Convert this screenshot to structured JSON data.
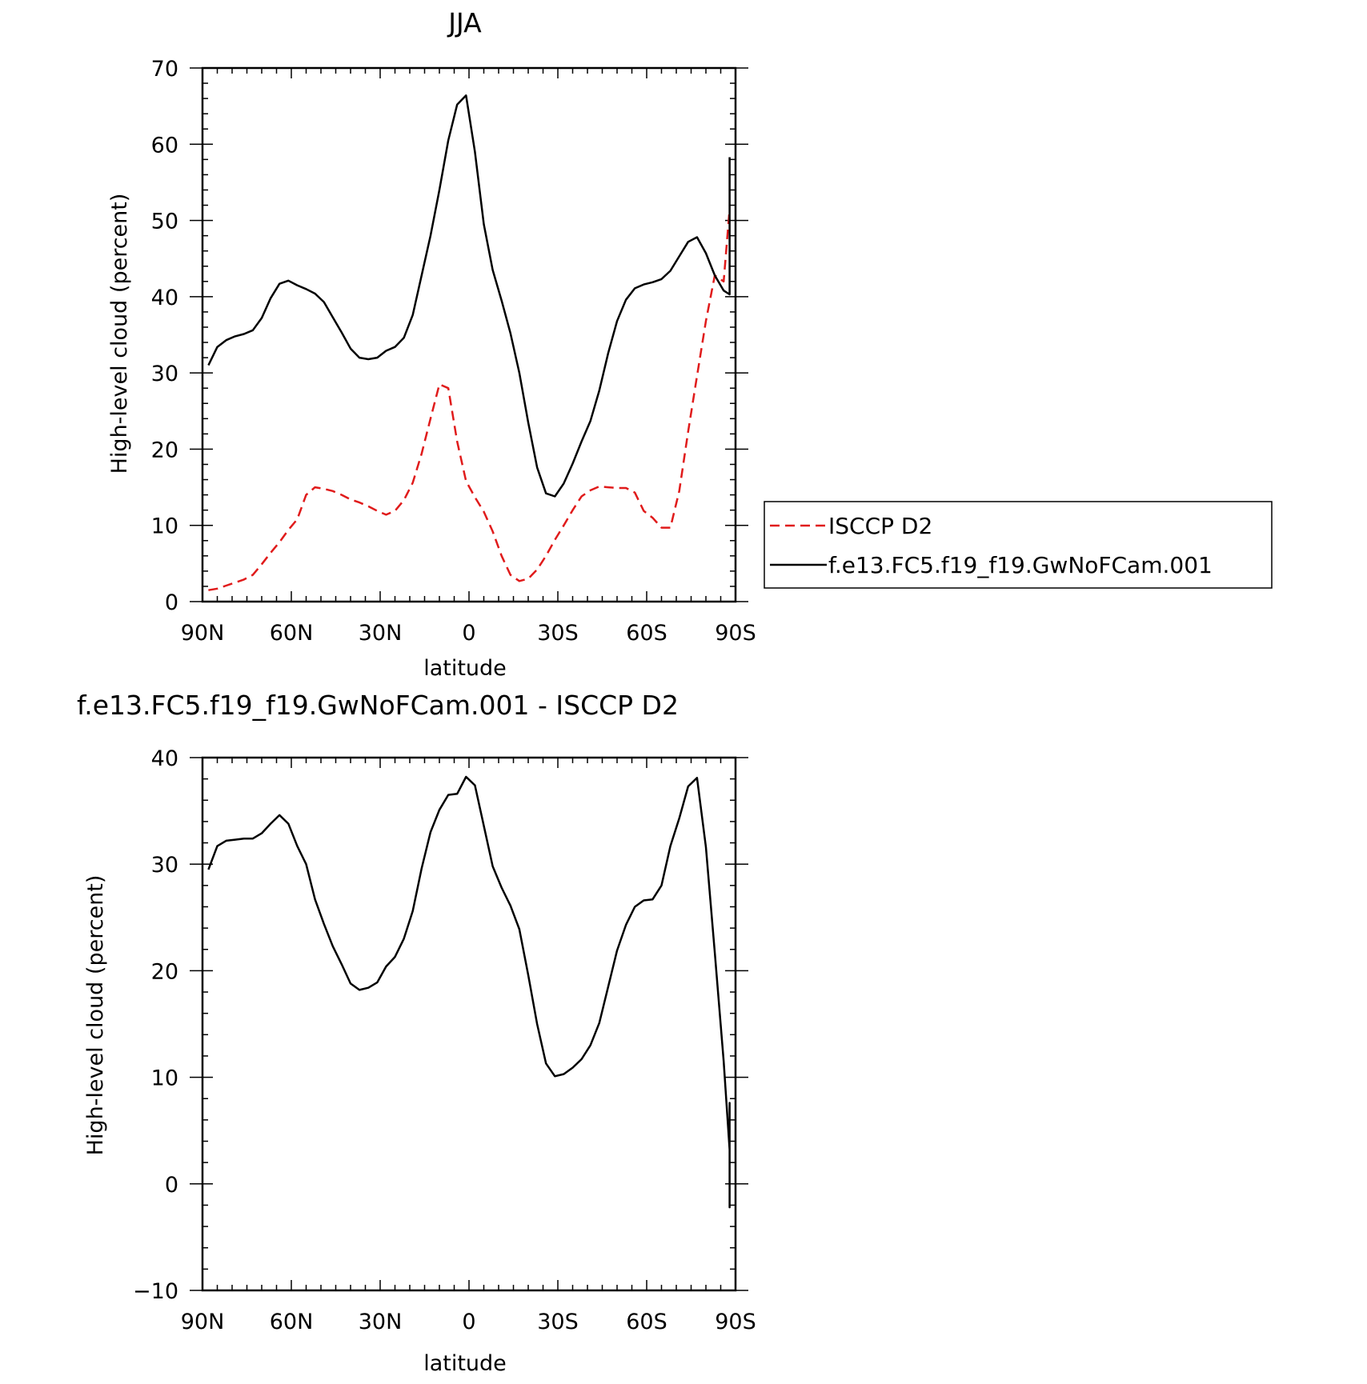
{
  "chart_data": [
    {
      "type": "line",
      "title": "JJA",
      "xlabel": "latitude",
      "ylabel": "High-level cloud (percent)",
      "xlim": [
        -90,
        90
      ],
      "ylim": [
        0,
        70
      ],
      "xticks": [
        -90,
        -60,
        -30,
        0,
        30,
        60,
        90
      ],
      "xtick_labels": [
        "90N",
        "60N",
        "30N",
        "0",
        "30S",
        "60S",
        "90S"
      ],
      "yticks": [
        0,
        10,
        20,
        30,
        40,
        50,
        60,
        70
      ],
      "ytick_labels": [
        "0",
        "10",
        "20",
        "30",
        "40",
        "50",
        "60",
        "70"
      ],
      "legend": "right",
      "series": [
        {
          "name": "ISCCP D2",
          "style": "dashed",
          "color": "#e01b1b",
          "x": [
            -88,
            -85,
            -82,
            -79,
            -76,
            -73,
            -70,
            -67,
            -64,
            -61,
            -58,
            -55,
            -52,
            -49,
            -46,
            -43,
            -40,
            -37,
            -34,
            -31,
            -28,
            -25,
            -22,
            -19,
            -16,
            -13,
            -10,
            -7,
            -4,
            -1,
            2,
            5,
            8,
            11,
            14,
            17,
            20,
            23,
            26,
            29,
            32,
            35,
            38,
            41,
            44,
            47,
            50,
            53,
            56,
            59,
            62,
            65,
            68,
            71,
            74,
            77,
            80,
            83,
            86,
            88
          ],
          "y": [
            1.5,
            1.7,
            2.1,
            2.5,
            2.9,
            3.5,
            4.9,
            6.4,
            7.8,
            9.4,
            10.8,
            14.0,
            15.0,
            14.8,
            14.5,
            14.0,
            13.4,
            13.0,
            12.5,
            11.9,
            11.4,
            11.9,
            13.3,
            15.6,
            19.4,
            24.0,
            28.5,
            28.0,
            21.0,
            15.8,
            13.7,
            11.8,
            9.2,
            6.0,
            3.5,
            2.7,
            3.0,
            4.2,
            6.0,
            8.1,
            10.0,
            12.0,
            13.8,
            14.6,
            15.1,
            15.0,
            14.9,
            14.9,
            14.3,
            11.9,
            11.0,
            9.7,
            9.7,
            14.5,
            22.3,
            29.6,
            36.8,
            42.8,
            42.0,
            51.5
          ]
        },
        {
          "name": "f.e13.FC5.f19_f19.GwNoFCam.001",
          "style": "solid",
          "color": "#000000",
          "x": [
            -88,
            -85,
            -82,
            -79,
            -76,
            -73,
            -70,
            -67,
            -64,
            -61,
            -58,
            -55,
            -52,
            -49,
            -46,
            -43,
            -40,
            -37,
            -34,
            -31,
            -28,
            -25,
            -22,
            -19,
            -16,
            -13,
            -10,
            -7,
            -4,
            -1,
            2,
            5,
            8,
            11,
            14,
            17,
            20,
            23,
            26,
            29,
            32,
            35,
            38,
            41,
            44,
            47,
            50,
            53,
            56,
            59,
            62,
            65,
            68,
            71,
            74,
            77,
            80,
            83,
            86,
            88
          ],
          "y": [
            31.0,
            33.4,
            34.3,
            34.8,
            35.1,
            35.6,
            37.2,
            39.8,
            41.7,
            42.1,
            41.5,
            41.0,
            40.4,
            39.3,
            37.3,
            35.3,
            33.2,
            32.0,
            31.8,
            32.0,
            32.9,
            33.4,
            34.6,
            37.6,
            42.8,
            48.0,
            54.0,
            60.5,
            65.2,
            66.4,
            59.0,
            49.5,
            43.5,
            39.5,
            35.2,
            30.0,
            23.5,
            17.6,
            14.2,
            13.8,
            15.5,
            18.1,
            21.0,
            23.7,
            27.7,
            32.6,
            36.8,
            39.6,
            41.1,
            41.6,
            41.9,
            42.3,
            43.4,
            45.3,
            47.2,
            47.8,
            45.7,
            42.8,
            40.8,
            40.3
          ]
        }
      ],
      "series_tail": [
        40.8,
        43.5,
        49.6,
        58.3
      ]
    },
    {
      "type": "line",
      "title": "f.e13.FC5.f19_f19.GwNoFCam.001 - ISCCP D2",
      "xlabel": "latitude",
      "ylabel": "High-level cloud (percent)",
      "xlim": [
        -90,
        90
      ],
      "ylim": [
        -10,
        40
      ],
      "xticks": [
        -90,
        -60,
        -30,
        0,
        30,
        60,
        90
      ],
      "xtick_labels": [
        "90N",
        "60N",
        "30N",
        "0",
        "30S",
        "60S",
        "90S"
      ],
      "yticks": [
        -10,
        0,
        10,
        20,
        30,
        40
      ],
      "ytick_labels": [
        "−10",
        "0",
        "10",
        "20",
        "30",
        "40"
      ],
      "series": [
        {
          "style": "solid",
          "color": "#000000",
          "x": [
            -88,
            -85,
            -82,
            -79,
            -76,
            -73,
            -70,
            -67,
            -64,
            -61,
            -58,
            -55,
            -52,
            -49,
            -46,
            -43,
            -40,
            -37,
            -34,
            -31,
            -28,
            -25,
            -22,
            -19,
            -16,
            -13,
            -10,
            -7,
            -4,
            -1,
            2,
            5,
            8,
            11,
            14,
            17,
            20,
            23,
            26,
            29,
            32,
            35,
            38,
            41,
            44,
            47,
            50,
            53,
            56,
            59,
            62,
            65,
            68,
            71,
            74,
            77,
            80,
            83,
            86,
            88
          ],
          "y": [
            29.5,
            31.7,
            32.2,
            32.3,
            32.4,
            32.4,
            32.9,
            33.8,
            34.6,
            33.8,
            31.7,
            30.0,
            26.7,
            24.4,
            22.3,
            20.6,
            18.8,
            18.2,
            18.4,
            18.9,
            20.4,
            21.3,
            23.0,
            25.6,
            29.6,
            33.0,
            35.1,
            36.5,
            36.6,
            38.2,
            37.4,
            33.6,
            29.8,
            27.8,
            26.1,
            23.9,
            19.6,
            15.0,
            11.3,
            10.1,
            10.3,
            10.9,
            11.7,
            13.0,
            15.1,
            18.5,
            21.9,
            24.3,
            26.0,
            26.6,
            26.7,
            28.0,
            31.7,
            34.3,
            37.3,
            38.1,
            31.6,
            21.7,
            11.5,
            3.2
          ]
        }
      ],
      "series_tail": [
        -2.2,
        1.7,
        7.6,
        6.8
      ]
    }
  ]
}
